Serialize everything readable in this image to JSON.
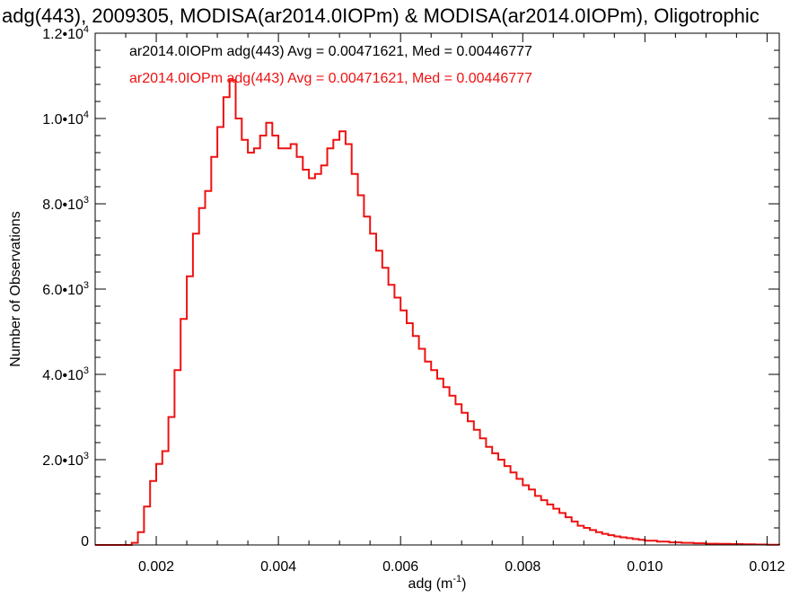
{
  "chart_data": {
    "type": "line",
    "title": "adg(443), 2009305, MODISA(ar2014.0IOPm) & MODISA(ar2014.0IOPm), Oligotrophic",
    "xlabel_base": "adg (m",
    "xlabel_exp": "-1",
    "xlabel_end": ")",
    "ylabel": "Number of Observations",
    "xlim": [
      0.001,
      0.0122
    ],
    "ylim": [
      0,
      12000
    ],
    "x_ticks": [
      {
        "value": 0.002,
        "label": "0.002"
      },
      {
        "value": 0.004,
        "label": "0.004"
      },
      {
        "value": 0.006,
        "label": "0.006"
      },
      {
        "value": 0.008,
        "label": "0.008"
      },
      {
        "value": 0.01,
        "label": "0.010"
      },
      {
        "value": 0.012,
        "label": "0.012"
      }
    ],
    "y_ticks": [
      {
        "value": 0,
        "mant": "0",
        "exp": ""
      },
      {
        "value": 2000,
        "mant": "2.0•10",
        "exp": "3"
      },
      {
        "value": 4000,
        "mant": "4.0•10",
        "exp": "3"
      },
      {
        "value": 6000,
        "mant": "6.0•10",
        "exp": "3"
      },
      {
        "value": 8000,
        "mant": "8.0•10",
        "exp": "3"
      },
      {
        "value": 10000,
        "mant": "1.0•10",
        "exp": "4"
      },
      {
        "value": 12000,
        "mant": "1.2•10",
        "exp": "4"
      }
    ],
    "annotations": [
      {
        "text": "ar2014.0IOPm adg(443) Avg = 0.00471621, Med = 0.00446777",
        "color": "#000000"
      },
      {
        "text": "ar2014.0IOPm adg(443) Avg = 0.00471621, Med = 0.00446777",
        "color": "#ee1111"
      }
    ],
    "series": [
      {
        "color": "#ee1111",
        "x": [
          0.001,
          0.0011,
          0.0012,
          0.0013,
          0.0014,
          0.0015,
          0.0016,
          0.0017,
          0.0018,
          0.0019,
          0.002,
          0.0021,
          0.0022,
          0.0023,
          0.0024,
          0.0025,
          0.0026,
          0.0027,
          0.0028,
          0.0029,
          0.003,
          0.0031,
          0.0032,
          0.0033,
          0.0034,
          0.0035,
          0.0036,
          0.0037,
          0.0038,
          0.0039,
          0.004,
          0.0041,
          0.0042,
          0.0043,
          0.0044,
          0.0045,
          0.0046,
          0.0047,
          0.0048,
          0.0049,
          0.005,
          0.0051,
          0.0052,
          0.0053,
          0.0054,
          0.0055,
          0.0056,
          0.0057,
          0.0058,
          0.0059,
          0.006,
          0.0061,
          0.0062,
          0.0063,
          0.0064,
          0.0065,
          0.0066,
          0.0067,
          0.0068,
          0.0069,
          0.007,
          0.0071,
          0.0072,
          0.0073,
          0.0074,
          0.0075,
          0.0076,
          0.0077,
          0.0078,
          0.0079,
          0.008,
          0.0081,
          0.0082,
          0.0083,
          0.0084,
          0.0085,
          0.0086,
          0.0087,
          0.0088,
          0.0089,
          0.009,
          0.0091,
          0.0092,
          0.0093,
          0.0094,
          0.0095,
          0.0096,
          0.0097,
          0.0098,
          0.0099,
          0.01,
          0.0102,
          0.0104,
          0.0106,
          0.0108,
          0.011,
          0.0112,
          0.0114,
          0.0116,
          0.0118,
          0.012,
          0.0122
        ],
        "y": [
          0,
          0,
          0,
          0,
          0,
          0,
          50,
          300,
          900,
          1500,
          1900,
          2200,
          3000,
          4100,
          5300,
          6300,
          7300,
          7900,
          8300,
          9100,
          9800,
          10500,
          10900,
          10000,
          9500,
          9200,
          9300,
          9600,
          9900,
          9600,
          9300,
          9300,
          9400,
          9100,
          8800,
          8600,
          8700,
          8900,
          9300,
          9500,
          9700,
          9400,
          8700,
          8200,
          7700,
          7300,
          6900,
          6500,
          6100,
          5800,
          5500,
          5200,
          4900,
          4600,
          4300,
          4100,
          3900,
          3700,
          3500,
          3300,
          3100,
          2900,
          2700,
          2500,
          2300,
          2150,
          2000,
          1850,
          1700,
          1550,
          1400,
          1300,
          1150,
          1050,
          950,
          850,
          750,
          650,
          550,
          450,
          400,
          350,
          300,
          260,
          230,
          200,
          180,
          160,
          140,
          120,
          100,
          80,
          60,
          50,
          40,
          30,
          25,
          20,
          15,
          10,
          5,
          0
        ]
      }
    ]
  }
}
